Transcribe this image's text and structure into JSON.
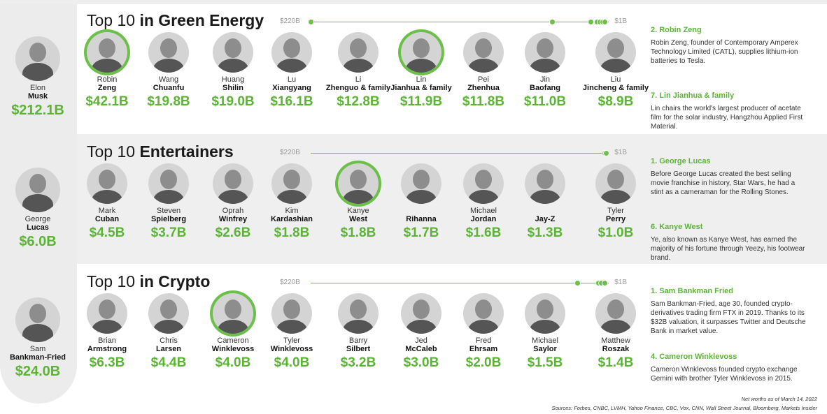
{
  "sections": [
    {
      "title_plain": "Top 10 ",
      "title_bold": "in Green Energy",
      "scale": {
        "left_label": "$220B",
        "right_label": "$1B",
        "dots": [
          0.0,
          0.81,
          0.94,
          0.96,
          0.97,
          0.98,
          0.985
        ]
      },
      "people": [
        {
          "first": "Elon",
          "last": "Musk",
          "worth": "$212.1B",
          "highlight": false
        },
        {
          "first": "Robin",
          "last": "Zeng",
          "worth": "$42.1B",
          "highlight": true
        },
        {
          "first": "Wang",
          "last": "Chuanfu",
          "worth": "$19.8B",
          "highlight": false
        },
        {
          "first": "Huang",
          "last": "Shilin",
          "worth": "$19.0B",
          "highlight": false
        },
        {
          "first": "Lu",
          "last": "Xiangyang",
          "worth": "$16.1B",
          "highlight": false
        },
        {
          "first": "Li",
          "last": "Zhenguo & family",
          "worth": "$12.8B",
          "highlight": false
        },
        {
          "first": "Lin",
          "last": "Jianhua & family",
          "worth": "$11.9B",
          "highlight": true
        },
        {
          "first": "Pei",
          "last": "Zhenhua",
          "worth": "$11.8B",
          "highlight": false
        },
        {
          "first": "Jin",
          "last": "Baofang",
          "worth": "$11.0B",
          "highlight": false
        },
        {
          "first": "Liu",
          "last": "Jincheng & family",
          "worth": "$8.9B",
          "highlight": false
        }
      ],
      "notes": [
        {
          "heading": "2. Robin Zeng",
          "text": "Robin Zeng, founder of Contemporary Amperex Technology Limited (CATL), supplies lithium-ion batteries to Tesla."
        },
        {
          "heading": "7. Lin Jianhua & family",
          "text": "Lin chairs the world's largest producer of acetate film for the solar industry, Hangzhou Applied First Material."
        }
      ]
    },
    {
      "title_plain": "Top 10 ",
      "title_bold": "Entertainers",
      "scale": {
        "left_label": "$220B",
        "right_label": "$1B",
        "dots": [
          0.985,
          0.99
        ]
      },
      "people": [
        {
          "first": "George",
          "last": "Lucas",
          "worth": "$6.0B",
          "highlight": false
        },
        {
          "first": "Mark",
          "last": "Cuban",
          "worth": "$4.5B",
          "highlight": false
        },
        {
          "first": "Steven",
          "last": "Spielberg",
          "worth": "$3.7B",
          "highlight": false
        },
        {
          "first": "Oprah",
          "last": "Winfrey",
          "worth": "$2.6B",
          "highlight": false
        },
        {
          "first": "Kim",
          "last": "Kardashian",
          "worth": "$1.8B",
          "highlight": false
        },
        {
          "first": "Kanye",
          "last": "West",
          "worth": "$1.8B",
          "highlight": true
        },
        {
          "first": "",
          "last": "Rihanna",
          "worth": "$1.7B",
          "highlight": false
        },
        {
          "first": "Michael",
          "last": "Jordan",
          "worth": "$1.6B",
          "highlight": false
        },
        {
          "first": "",
          "last": "Jay-Z",
          "worth": "$1.3B",
          "highlight": false
        },
        {
          "first": "Tyler",
          "last": "Perry",
          "worth": "$1.0B",
          "highlight": false
        }
      ],
      "notes": [
        {
          "heading": "1. George Lucas",
          "text": "Before George Lucas created the best selling movie franchise in history, Star Wars, he had a stint as a cameraman for the Rolling Stones."
        },
        {
          "heading": "6. Kanye West",
          "text": "Ye, also known as Kanye West, has earned the majority of his fortune through Yeezy, his footwear brand."
        }
      ]
    },
    {
      "title_plain": "Top 10 ",
      "title_bold": "in Crypto",
      "scale": {
        "left_label": "$220B",
        "right_label": "$1B",
        "dots": [
          0.895,
          0.965,
          0.975,
          0.985
        ]
      },
      "people": [
        {
          "first": "Sam",
          "last": "Bankman-Fried",
          "worth": "$24.0B",
          "highlight": false
        },
        {
          "first": "Brian",
          "last": "Armstrong",
          "worth": "$6.3B",
          "highlight": false
        },
        {
          "first": "Chris",
          "last": "Larsen",
          "worth": "$4.4B",
          "highlight": false
        },
        {
          "first": "Cameron",
          "last": "Winklevoss",
          "worth": "$4.0B",
          "highlight": true
        },
        {
          "first": "Tyler",
          "last": "Winklevoss",
          "worth": "$4.0B",
          "highlight": false
        },
        {
          "first": "Barry",
          "last": "Silbert",
          "worth": "$3.2B",
          "highlight": false
        },
        {
          "first": "Jed",
          "last": "McCaleb",
          "worth": "$3.0B",
          "highlight": false
        },
        {
          "first": "Fred",
          "last": "Ehrsam",
          "worth": "$2.0B",
          "highlight": false
        },
        {
          "first": "Michael",
          "last": "Saylor",
          "worth": "$1.5B",
          "highlight": false
        },
        {
          "first": "Matthew",
          "last": "Roszak",
          "worth": "$1.4B",
          "highlight": false
        }
      ],
      "notes": [
        {
          "heading": "1. Sam Bankman Fried",
          "text": "Sam Bankman-Fried, age 30, founded crypto-derivatives trading firm FTX in 2019. Thanks to its $32B valuation, it surpasses Twitter and Deutsche Bank in market value."
        },
        {
          "heading": "4. Cameron Winklevoss",
          "text": "Cameron Winklevoss founded crypto exchange Gemini with brother Tyler Winklevoss in 2015."
        }
      ]
    }
  ],
  "footer": {
    "date": "Net worths as of March 14, 2022",
    "sources": "Sources: Forbes, CNBC, LVMH, Yahoo Finance, CBC, Vox, CNN, Wall Street Journal, Bloomberg, Markets Insider"
  }
}
